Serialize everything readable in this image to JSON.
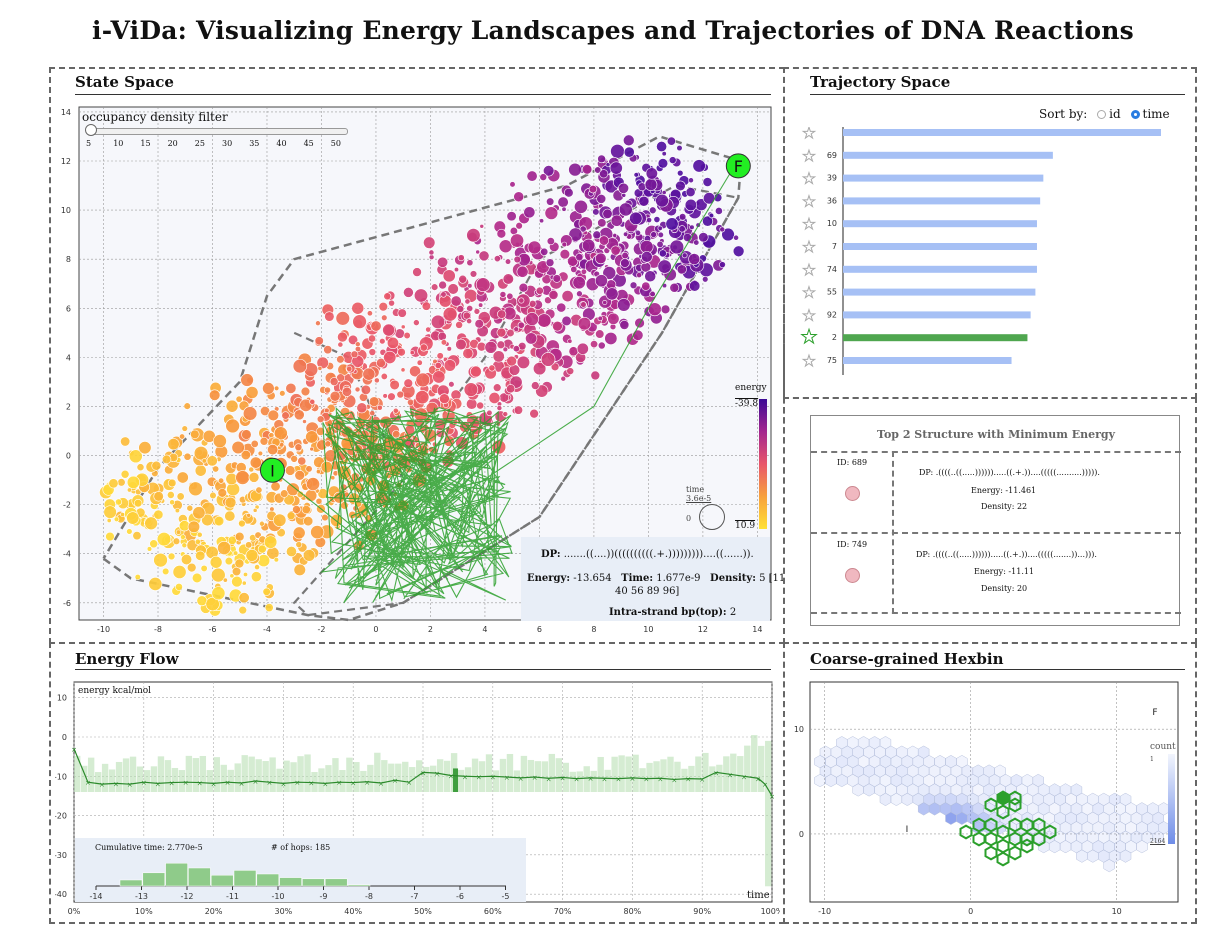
{
  "app_title": "i-ViDa: Visualizing Energy Landscapes and Trajectories of DNA Reactions",
  "state_space": {
    "title": "State Space",
    "filter_label": "occupancy density filter",
    "filter_ticks": [
      "5",
      "10",
      "15",
      "20",
      "25",
      "30",
      "35",
      "40",
      "45",
      "50"
    ],
    "filter_value": 5,
    "x_ticks": [
      "-10",
      "-8",
      "-6",
      "-4",
      "-2",
      "0",
      "2",
      "4",
      "6",
      "8",
      "10",
      "12",
      "14"
    ],
    "y_ticks": [
      "14",
      "12",
      "10",
      "8",
      "6",
      "4",
      "2",
      "0",
      "-2",
      "-4",
      "-6"
    ],
    "initial_label": "I",
    "final_label": "F",
    "energy_legend_title": "energy",
    "energy_max_label": "-39.8",
    "energy_min_label": "10.9",
    "time_legend_title": "time",
    "time_legend_value": "3.6e-5",
    "time_legend_zero": "0",
    "info": {
      "dp_label": "DP:",
      "dp_value": ".......((....))((((((((((.+.)))))))))....((......)).",
      "energy_label": "Energy:",
      "energy_value": "-13.654",
      "time_label": "Time:",
      "time_value": "1.677e-9",
      "density_label": "Density:",
      "density_value": "5 [11",
      "density_value2": "40 56 89 96]",
      "bp_label": "Intra-strand bp(top):",
      "bp_value": "2"
    },
    "colors": {
      "low": "#ffd93a",
      "mid": "#e8556a",
      "high": "#4b0c9e",
      "trajectory": "#2ca02c",
      "start_end": "#22ee22"
    }
  },
  "trajectory_space": {
    "title": "Trajectory Space",
    "sort_label": "Sort by:",
    "sort_options": [
      "id",
      "time"
    ],
    "sort_selected": "time",
    "rows": [
      {
        "id": "",
        "value": 1.0,
        "highlight": false
      },
      {
        "id": "69",
        "value": 0.66,
        "highlight": false
      },
      {
        "id": "39",
        "value": 0.63,
        "highlight": false
      },
      {
        "id": "36",
        "value": 0.62,
        "highlight": false
      },
      {
        "id": "10",
        "value": 0.61,
        "highlight": false
      },
      {
        "id": "7",
        "value": 0.61,
        "highlight": false
      },
      {
        "id": "74",
        "value": 0.61,
        "highlight": false
      },
      {
        "id": "55",
        "value": 0.605,
        "highlight": false
      },
      {
        "id": "92",
        "value": 0.59,
        "highlight": false
      },
      {
        "id": "2",
        "value": 0.58,
        "highlight": true
      },
      {
        "id": "75",
        "value": 0.53,
        "highlight": false
      }
    ],
    "bar_color": "#a6c0f5",
    "highlight_color": "#4fa64f"
  },
  "top_structures": {
    "title": "Top 2 Structure with Minimum Energy",
    "items": [
      {
        "id_label": "ID: 689",
        "dp": "DP: .((((..((.....)))))).....((.+.))....(((((..........))))).",
        "energy": "Energy: -11.461",
        "density": "Density: 22"
      },
      {
        "id_label": "ID: 749",
        "dp": "DP: .((((..((.....)))))).....((.+.))....(((((.......))...))).",
        "energy": "Energy: -11.11",
        "density": "Density: 20"
      }
    ]
  },
  "energy_flow": {
    "title": "Energy Flow",
    "ylabel": "energy kcal/mol",
    "y_ticks": [
      "10",
      "0",
      "-10",
      "-20",
      "-30",
      "-40"
    ],
    "x_ticks": [
      "0%",
      "10%",
      "20%",
      "30%",
      "40%",
      "50%",
      "60%",
      "70%",
      "80%",
      "90%",
      "100%"
    ],
    "xlabel": "time",
    "cumulative_label": "Cumulative time: 2.770e-5",
    "hops_label": "# of hops: 185",
    "hist_ticks": [
      "-14",
      "-13",
      "-12",
      "-11",
      "-10",
      "-9",
      "-8",
      "-7",
      "-6",
      "-5"
    ]
  },
  "hexbin": {
    "title": "Coarse-grained Hexbin",
    "x_ticks": [
      "-10",
      "0",
      "10"
    ],
    "y_ticks": [
      "10",
      "0"
    ],
    "legend_title": "count",
    "legend_min": "1",
    "legend_max": "2164",
    "initial_label": "I",
    "final_label": "F"
  },
  "chart_data": [
    {
      "type": "bar",
      "title": "Trajectory Space",
      "categories": [
        "",
        "69",
        "39",
        "36",
        "10",
        "7",
        "74",
        "55",
        "92",
        "2",
        "75"
      ],
      "values": [
        1.0,
        0.66,
        0.63,
        0.62,
        0.61,
        0.61,
        0.61,
        0.605,
        0.59,
        0.58,
        0.53
      ]
    },
    {
      "type": "line",
      "title": "Energy Flow",
      "ylabel": "energy kcal/mol",
      "xlabel": "time",
      "ylim": [
        -42,
        14
      ],
      "x": [
        0,
        2,
        4,
        6,
        8,
        10,
        12,
        14,
        16,
        18,
        20,
        22,
        24,
        26,
        28,
        30,
        32,
        34,
        36,
        38,
        40,
        42,
        44,
        46,
        48,
        50,
        52,
        54,
        56,
        58,
        60,
        62,
        64,
        66,
        68,
        70,
        72,
        74,
        76,
        78,
        80,
        82,
        84,
        86,
        88,
        90,
        92,
        94,
        96,
        98,
        99,
        100
      ],
      "series": [
        {
          "values": [
            -3,
            -11.5,
            -12,
            -11.8,
            -12,
            -11.5,
            -11.8,
            -11.6,
            -11.5,
            -11.6,
            -11.8,
            -11.5,
            -11.7,
            -11.2,
            -11.5,
            -11.8,
            -11.5,
            -11.6,
            -11.8,
            -11.5,
            -11.6,
            -11.4,
            -11.7,
            -11,
            -11.5,
            -9,
            -9.2,
            -9.8,
            -10,
            -10.1,
            -10,
            -10.2,
            -10.4,
            -10.2,
            -10.5,
            -10.3,
            -10.6,
            -10.4,
            -10.5,
            -10.6,
            -10.4,
            -10.6,
            -10.5,
            -10.8,
            -10.6,
            -10.7,
            -9,
            -9.5,
            -10,
            -10.5,
            -12,
            -15
          ]
        }
      ]
    },
    {
      "type": "bar",
      "title": "Cumulative time histogram",
      "categories": [
        "-13.5",
        "-13",
        "-12.5",
        "-12",
        "-11.5",
        "-11",
        "-10.5",
        "-10",
        "-9.5",
        "-9",
        "-8.5"
      ],
      "values": [
        0.25,
        0.55,
        0.95,
        0.75,
        0.45,
        0.65,
        0.5,
        0.35,
        0.3,
        0.3,
        0.05
      ]
    }
  ]
}
